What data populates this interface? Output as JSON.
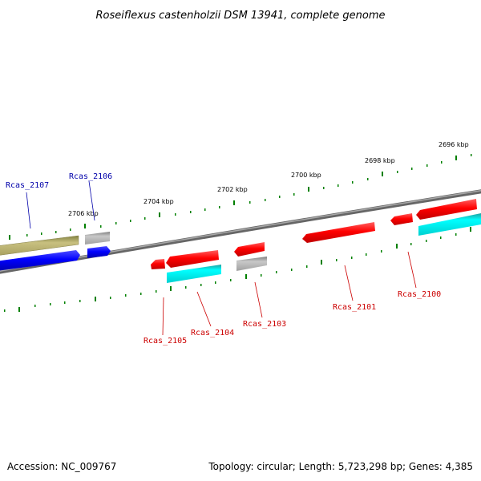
{
  "title": "Roseiflexus castenholzii DSM 13941, complete genome",
  "footer": {
    "accession": "Accession: NC_009767",
    "summary": "Topology: circular; Length: 5,723,298 bp; Genes: 4,385"
  },
  "colors": {
    "forward_gene": "#ff0000",
    "reverse_gene": "#0000ff",
    "cds_cyan": "#00ffff",
    "grey_feature": "#b0b0b0",
    "olive_feature": "#b8b070",
    "tick": "#008000",
    "backbone": "#808080",
    "forward_label": "#cc0000",
    "reverse_label": "#0000aa"
  },
  "scale_labels": [
    {
      "text": "2696 kbp"
    },
    {
      "text": "2698 kbp"
    },
    {
      "text": "2700 kbp"
    },
    {
      "text": "2702 kbp"
    },
    {
      "text": "2704 kbp"
    },
    {
      "text": "2706 kbp"
    }
  ],
  "gene_labels": [
    {
      "id": "Rcas_2107",
      "text": "Rcas_2107",
      "strand": "reverse"
    },
    {
      "id": "Rcas_2106",
      "text": "Rcas_2106",
      "strand": "reverse"
    },
    {
      "id": "Rcas_2105",
      "text": "Rcas_2105",
      "strand": "forward"
    },
    {
      "id": "Rcas_2104",
      "text": "Rcas_2104",
      "strand": "forward"
    },
    {
      "id": "Rcas_2103",
      "text": "Rcas_2103",
      "strand": "forward"
    },
    {
      "id": "Rcas_2101",
      "text": "Rcas_2101",
      "strand": "forward"
    },
    {
      "id": "Rcas_2100",
      "text": "Rcas_2100",
      "strand": "forward"
    }
  ]
}
